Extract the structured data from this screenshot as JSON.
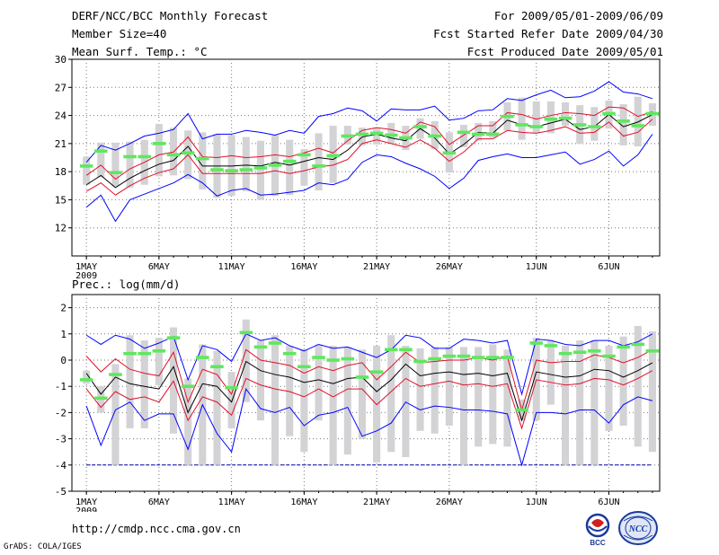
{
  "header": {
    "title": "DERF/NCC/BCC Monthly Forecast",
    "member_size": "Member Size=40",
    "variable": "Mean Surf. Temp.: °C",
    "period": "For 2009/05/01-2009/06/09",
    "started": "Fcst Started Refer Date 2009/04/30",
    "produced": "Fcst Produced Date 2009/05/01"
  },
  "footer": {
    "url": "http://cmdp.ncc.cma.gov.cn",
    "credit": "GrADS: COLA/IGES",
    "logo_bcc": "BCC",
    "logo_ncc": "NCC"
  },
  "colors": {
    "box": "#d3d3d6",
    "median": "#5ee85e",
    "envelope": "#0000ff",
    "percentile": "#e0102a",
    "mean": "#000000",
    "grid": "#777777",
    "floor": "#0000aa"
  },
  "chart_data": [
    {
      "type": "line",
      "name": "temperature",
      "title": "",
      "xlabel": "",
      "ylabel": "",
      "x_days": 40,
      "x_ticks": [
        {
          "day": 1,
          "label": "1MAY"
        },
        {
          "day": 6,
          "label": "6MAY"
        },
        {
          "day": 11,
          "label": "11MAY"
        },
        {
          "day": 16,
          "label": "16MAY"
        },
        {
          "day": 21,
          "label": "21MAY"
        },
        {
          "day": 26,
          "label": "26MAY"
        },
        {
          "day": 32,
          "label": "1JUN"
        },
        {
          "day": 37,
          "label": "6JUN"
        }
      ],
      "x_sub": "2009",
      "ylim": [
        9,
        30
      ],
      "y_ticks": [
        12,
        15,
        18,
        21,
        24,
        27,
        30
      ],
      "series": [
        {
          "name": "max",
          "values": [
            14.2,
            15.5,
            12.7,
            15.0,
            15.6,
            16.2,
            16.8,
            17.7,
            16.8,
            15.4,
            16.0,
            16.2,
            15.5,
            15.6,
            15.8,
            16.0,
            16.8,
            16.6,
            17.2,
            19.0,
            19.8,
            19.6,
            18.9,
            18.3,
            17.5,
            16.2,
            17.3,
            19.2,
            19.6,
            19.9,
            19.5,
            19.5,
            19.8,
            20.1,
            18.8,
            19.3,
            20.2,
            18.6,
            19.8,
            22.0
          ]
        },
        {
          "name": "p90",
          "values": [
            17.6,
            18.7,
            17.2,
            18.3,
            19.0,
            19.8,
            20.1,
            21.7,
            19.6,
            19.5,
            19.7,
            19.5,
            19.6,
            19.8,
            19.6,
            20.0,
            20.5,
            20.0,
            21.3,
            22.4,
            22.7,
            22.5,
            22.1,
            23.3,
            22.8,
            20.9,
            21.9,
            22.9,
            22.9,
            24.3,
            24.1,
            23.6,
            24.0,
            24.3,
            24.2,
            24.0,
            24.9,
            24.8,
            23.9,
            24.4
          ]
        },
        {
          "name": "p10",
          "values": [
            15.9,
            16.8,
            15.5,
            16.5,
            17.3,
            17.9,
            18.3,
            19.8,
            17.8,
            17.8,
            17.8,
            17.8,
            17.8,
            18.1,
            17.8,
            18.1,
            18.5,
            18.7,
            19.3,
            21.0,
            21.4,
            21.0,
            20.6,
            21.4,
            20.5,
            19.1,
            20.1,
            21.5,
            21.5,
            22.4,
            22.2,
            22.1,
            22.4,
            22.8,
            22.1,
            22.2,
            23.3,
            21.8,
            22.2,
            23.6
          ]
        },
        {
          "name": "mean",
          "values": [
            16.6,
            17.6,
            16.3,
            17.3,
            18.1,
            18.8,
            19.2,
            20.7,
            18.6,
            18.6,
            18.6,
            18.7,
            18.6,
            19.0,
            18.7,
            19.1,
            19.5,
            19.3,
            20.3,
            21.7,
            22.0,
            21.6,
            21.3,
            22.6,
            21.6,
            19.9,
            20.9,
            22.2,
            22.1,
            23.5,
            23.0,
            22.8,
            23.2,
            23.6,
            22.5,
            22.8,
            24.1,
            22.8,
            23.3,
            24.1
          ]
        },
        {
          "name": "min",
          "values": [
            19.0,
            20.8,
            20.3,
            21.0,
            21.8,
            22.1,
            22.5,
            24.2,
            21.5,
            22.0,
            22.0,
            22.4,
            22.2,
            21.9,
            22.4,
            22.1,
            23.9,
            24.2,
            24.8,
            24.5,
            23.4,
            24.7,
            24.6,
            24.6,
            25.0,
            23.5,
            23.7,
            24.5,
            24.6,
            25.8,
            25.6,
            26.2,
            26.7,
            25.9,
            26.0,
            26.6,
            27.6,
            26.5,
            26.3,
            25.8
          ]
        },
        {
          "name": "median",
          "values": [
            18.6,
            20.2,
            17.9,
            19.6,
            19.6,
            21.0,
            19.8,
            20.0,
            19.4,
            18.2,
            18.1,
            18.2,
            18.4,
            18.7,
            19.1,
            19.8,
            18.6,
            19.7,
            21.8,
            22.0,
            22.1,
            21.9,
            21.6,
            22.8,
            21.8,
            20.0,
            22.2,
            22.0,
            22.0,
            23.9,
            23.0,
            22.8,
            23.6,
            23.7,
            23.0,
            22.8,
            24.2,
            23.4,
            22.9,
            24.2
          ]
        },
        {
          "name": "box_low",
          "values": [
            16.6,
            17.4,
            16.4,
            16.3,
            16.6,
            17.5,
            17.6,
            17.2,
            16.1,
            15.2,
            15.4,
            15.9,
            15.0,
            15.4,
            15.5,
            16.5,
            16.0,
            16.8,
            20.9,
            20.8,
            20.9,
            21.0,
            20.3,
            21.5,
            20.4,
            17.9,
            20.6,
            21.3,
            21.6,
            22.4,
            21.4,
            22.1,
            22.1,
            22.9,
            21.0,
            21.3,
            22.6,
            20.8,
            20.7,
            22.9
          ]
        },
        {
          "name": "box_high",
          "values": [
            19.6,
            21.1,
            21.1,
            21.2,
            21.4,
            23.1,
            22.7,
            22.4,
            22.2,
            22.0,
            21.9,
            21.7,
            21.3,
            21.9,
            21.4,
            20.4,
            22.1,
            22.9,
            22.9,
            22.7,
            22.6,
            23.2,
            22.9,
            23.7,
            23.4,
            22.2,
            23.0,
            23.2,
            23.4,
            25.4,
            25.9,
            25.5,
            25.5,
            25.4,
            25.1,
            24.9,
            25.6,
            25.2,
            26.0,
            25.3
          ]
        }
      ]
    },
    {
      "type": "line",
      "name": "precipitation",
      "title": "Prec.: log(mm/d)",
      "xlabel": "",
      "ylabel": "",
      "x_days": 40,
      "x_ticks": [
        {
          "day": 1,
          "label": "1MAY"
        },
        {
          "day": 6,
          "label": "6MAY"
        },
        {
          "day": 11,
          "label": "11MAY"
        },
        {
          "day": 16,
          "label": "16MAY"
        },
        {
          "day": 21,
          "label": "21MAY"
        },
        {
          "day": 26,
          "label": "26MAY"
        },
        {
          "day": 32,
          "label": "1JUN"
        },
        {
          "day": 37,
          "label": "6JUN"
        }
      ],
      "x_sub": "2009",
      "ylim": [
        -5,
        2.5
      ],
      "y_ticks": [
        -5,
        -4,
        -3,
        -2,
        -1,
        0,
        1,
        2
      ],
      "floor": -4,
      "series": [
        {
          "name": "max",
          "values": [
            0.95,
            0.6,
            0.95,
            0.8,
            0.45,
            0.65,
            0.9,
            -0.75,
            0.55,
            0.4,
            -0.05,
            1.0,
            0.75,
            0.85,
            0.55,
            0.35,
            0.6,
            0.45,
            0.5,
            0.3,
            0.1,
            0.4,
            0.95,
            0.85,
            0.45,
            0.45,
            0.8,
            0.75,
            0.65,
            0.75,
            -1.3,
            0.8,
            0.75,
            0.6,
            0.55,
            0.75,
            0.75,
            0.55,
            0.7,
            1.0
          ]
        },
        {
          "name": "p90",
          "values": [
            0.15,
            -0.45,
            0.05,
            -0.35,
            -0.5,
            -0.6,
            0.3,
            -1.6,
            -0.35,
            -0.55,
            -1.3,
            0.4,
            0.0,
            -0.1,
            -0.2,
            -0.5,
            -0.25,
            -0.4,
            -0.2,
            -0.1,
            -0.75,
            -0.25,
            0.3,
            -0.1,
            -0.05,
            0.0,
            0.0,
            0.1,
            0.0,
            0.15,
            -1.9,
            0.0,
            -0.1,
            -0.05,
            -0.05,
            0.2,
            0.1,
            -0.1,
            0.1,
            0.4
          ]
        },
        {
          "name": "mean",
          "values": [
            -0.5,
            -1.3,
            -0.65,
            -0.9,
            -1.0,
            -1.1,
            -0.25,
            -2.0,
            -0.9,
            -1.0,
            -1.6,
            -0.05,
            -0.4,
            -0.55,
            -0.65,
            -0.85,
            -0.75,
            -0.9,
            -0.7,
            -0.65,
            -1.2,
            -0.75,
            -0.15,
            -0.6,
            -0.5,
            -0.45,
            -0.55,
            -0.5,
            -0.6,
            -0.5,
            -2.3,
            -0.45,
            -0.55,
            -0.65,
            -0.6,
            -0.35,
            -0.4,
            -0.65,
            -0.4,
            -0.1
          ]
        },
        {
          "name": "p10",
          "values": [
            -1.1,
            -1.8,
            -1.2,
            -1.5,
            -1.4,
            -1.6,
            -0.8,
            -2.3,
            -1.4,
            -1.6,
            -2.1,
            -0.7,
            -0.95,
            -1.1,
            -1.2,
            -1.4,
            -1.1,
            -1.4,
            -1.1,
            -1.1,
            -1.7,
            -1.2,
            -0.7,
            -1.0,
            -0.9,
            -0.8,
            -0.95,
            -0.9,
            -1.0,
            -0.9,
            -2.6,
            -0.75,
            -0.85,
            -0.95,
            -0.9,
            -0.7,
            -0.75,
            -0.95,
            -0.7,
            -0.4
          ]
        },
        {
          "name": "min",
          "values": [
            -1.75,
            -3.25,
            -1.9,
            -1.6,
            -2.3,
            -2.05,
            -2.05,
            -3.4,
            -1.7,
            -2.8,
            -3.5,
            -1.1,
            -1.85,
            -2.0,
            -1.8,
            -2.5,
            -2.1,
            -2.0,
            -1.8,
            -2.9,
            -2.7,
            -2.4,
            -1.6,
            -1.9,
            -1.75,
            -1.8,
            -1.9,
            -1.9,
            -1.95,
            -2.05,
            -4.0,
            -2.0,
            -2.0,
            -2.05,
            -1.9,
            -1.9,
            -2.4,
            -1.7,
            -1.4,
            -1.55
          ]
        },
        {
          "name": "median",
          "values": [
            -0.75,
            -1.45,
            -0.55,
            0.25,
            0.25,
            0.35,
            0.85,
            -1.0,
            0.1,
            -0.25,
            -1.05,
            1.05,
            0.5,
            0.65,
            0.25,
            -0.25,
            0.1,
            0.0,
            0.05,
            -0.65,
            -0.45,
            0.4,
            0.4,
            -0.05,
            0.05,
            0.15,
            0.15,
            0.1,
            0.1,
            0.1,
            -1.9,
            0.65,
            0.55,
            0.25,
            0.3,
            0.35,
            0.15,
            0.5,
            0.6,
            0.35
          ]
        },
        {
          "name": "box_low",
          "values": [
            -0.9,
            -2.0,
            -4.0,
            -2.6,
            -2.6,
            -0.95,
            -2.8,
            -4.0,
            -4.0,
            -4.0,
            -2.6,
            -1.6,
            -2.3,
            -4.0,
            -2.9,
            -3.5,
            -2.3,
            -4.0,
            -3.6,
            -3.0,
            -3.9,
            -3.5,
            -3.7,
            -2.7,
            -2.8,
            -2.5,
            -4.0,
            -3.3,
            -3.2,
            -3.3,
            -2.3,
            -2.3,
            -1.7,
            -4.0,
            -4.0,
            -4.0,
            -2.7,
            -2.5,
            -3.3,
            -3.5
          ]
        },
        {
          "name": "box_high",
          "values": [
            -0.4,
            -1.0,
            -0.15,
            0.95,
            0.75,
            0.85,
            1.25,
            -0.7,
            0.6,
            0.35,
            -0.45,
            1.55,
            0.75,
            0.95,
            0.55,
            0.4,
            0.6,
            0.55,
            0.5,
            0.4,
            0.55,
            0.95,
            0.55,
            0.45,
            0.5,
            0.5,
            0.5,
            0.5,
            0.6,
            0.4,
            -1.5,
            0.85,
            0.75,
            0.55,
            0.75,
            0.75,
            0.55,
            0.9,
            1.3,
            1.1
          ]
        }
      ]
    }
  ]
}
